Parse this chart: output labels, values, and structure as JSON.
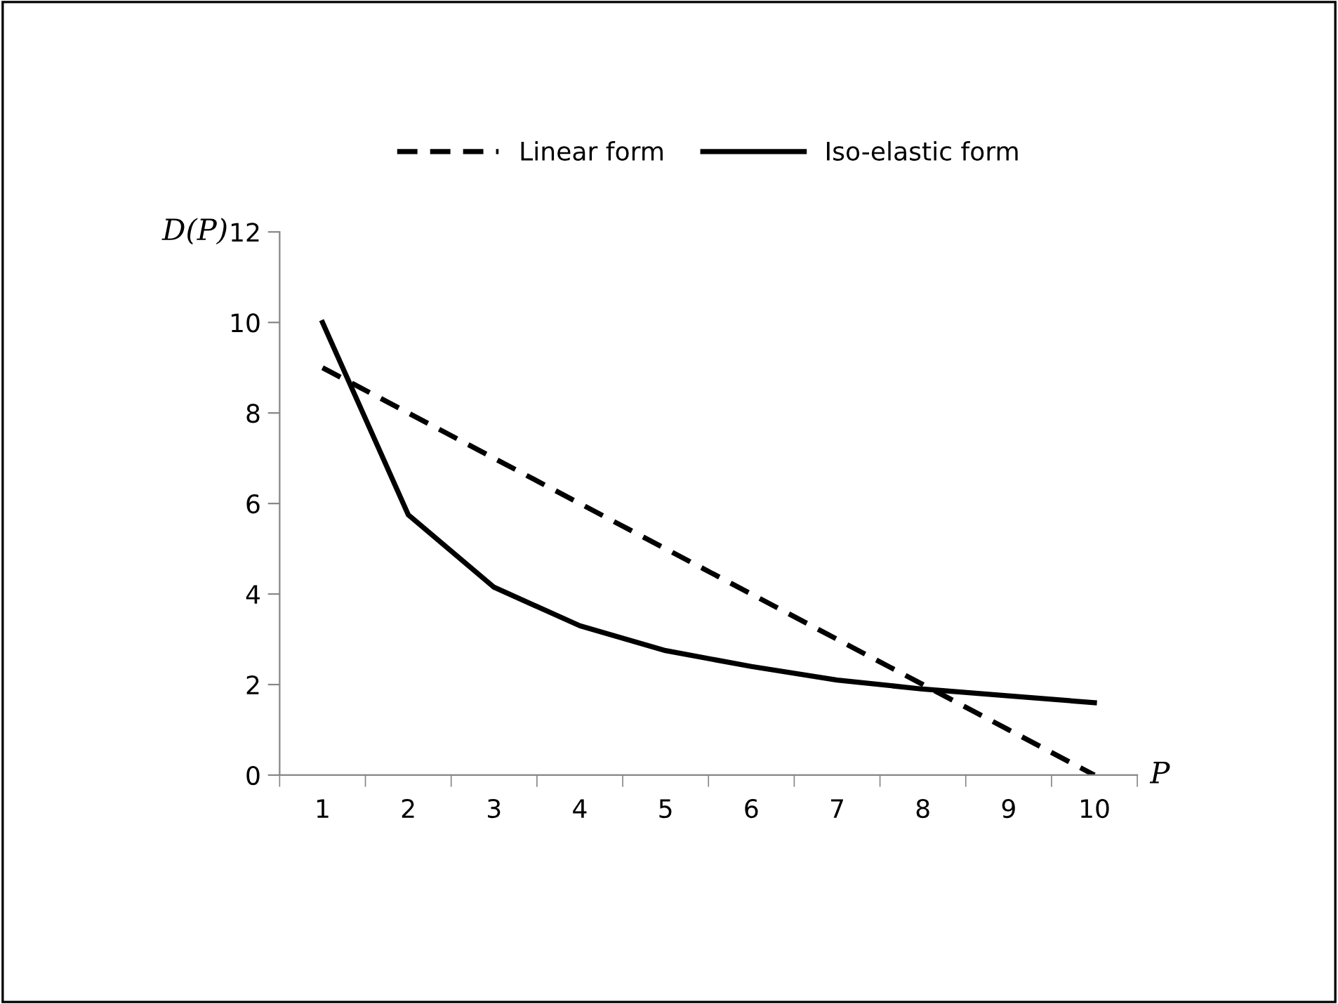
{
  "chart_data": {
    "type": "line",
    "xlabel": "P",
    "ylabel": "D(P)",
    "categories": [
      "1",
      "2",
      "3",
      "4",
      "5",
      "6",
      "7",
      "8",
      "9",
      "10"
    ],
    "series": [
      {
        "name": "Linear form",
        "color": "#000000",
        "line_style": "dashed",
        "values": [
          9,
          8,
          7,
          6,
          5,
          4,
          3,
          2,
          1,
          0
        ]
      },
      {
        "name": "Iso-elastic form",
        "color": "#000000",
        "line_style": "solid",
        "values": [
          10,
          5.75,
          4.15,
          3.3,
          2.75,
          2.4,
          2.1,
          1.9,
          1.75,
          1.6
        ]
      }
    ],
    "ylim": [
      0,
      12
    ],
    "yticks": [
      0,
      2,
      4,
      6,
      8,
      10,
      12
    ],
    "grid": false,
    "legend": "top",
    "marker": "none"
  }
}
